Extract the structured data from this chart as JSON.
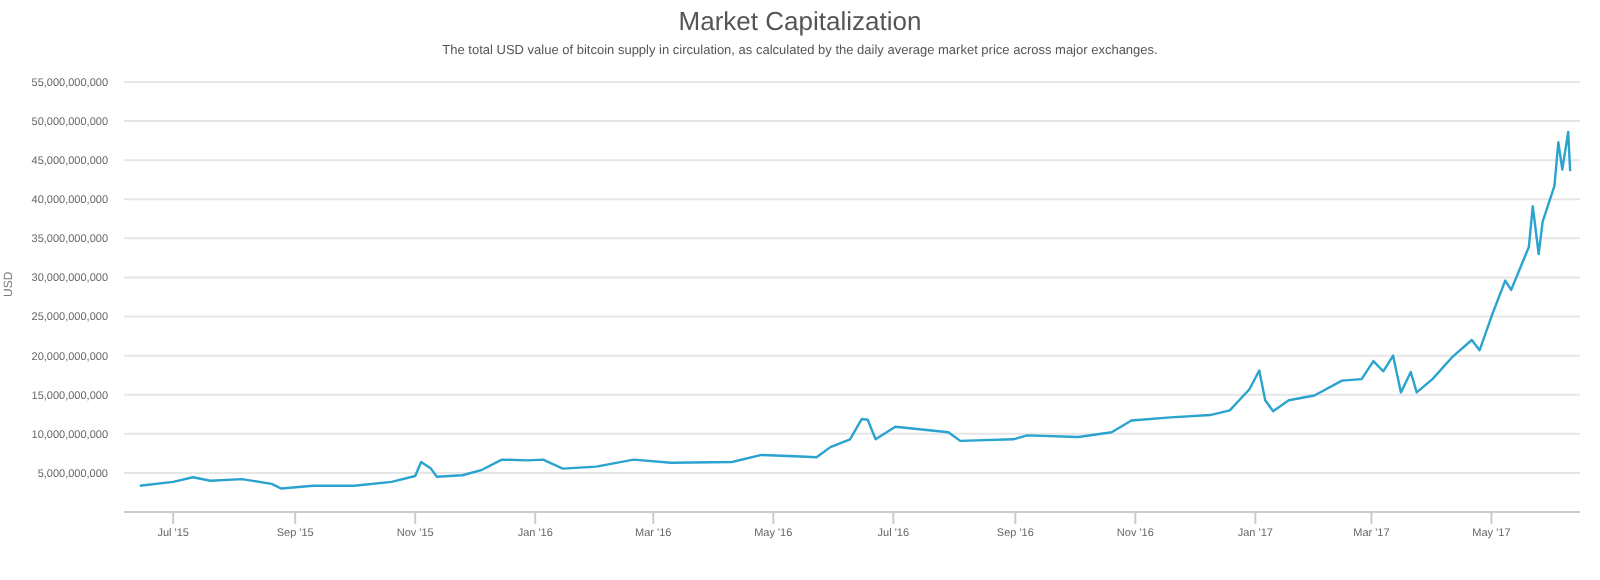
{
  "chart_data": {
    "type": "line",
    "title": "Market Capitalization",
    "subtitle": "The total USD value of bitcoin supply in circulation, as calculated by the daily average market price across major exchanges.",
    "ylabel": "USD",
    "x": [
      "2015-06-14",
      "2015-07-01",
      "2015-07-11",
      "2015-07-20",
      "2015-08-05",
      "2015-08-20",
      "2015-08-25",
      "2015-09-10",
      "2015-10-01",
      "2015-10-20",
      "2015-11-01",
      "2015-11-04",
      "2015-11-09",
      "2015-11-12",
      "2015-11-25",
      "2015-12-05",
      "2015-12-15",
      "2015-12-28",
      "2016-01-05",
      "2016-01-15",
      "2016-02-01",
      "2016-02-20",
      "2016-03-10",
      "2016-04-10",
      "2016-04-25",
      "2016-05-15",
      "2016-05-23",
      "2016-05-30",
      "2016-06-09",
      "2016-06-15",
      "2016-06-18",
      "2016-06-22",
      "2016-07-02",
      "2016-07-29",
      "2016-08-04",
      "2016-08-31",
      "2016-09-07",
      "2016-10-03",
      "2016-10-20",
      "2016-10-30",
      "2016-11-19",
      "2016-12-09",
      "2016-12-19",
      "2016-12-29",
      "2017-01-03",
      "2017-01-06",
      "2017-01-10",
      "2017-01-18",
      "2017-01-31",
      "2017-02-14",
      "2017-02-24",
      "2017-03-02",
      "2017-03-07",
      "2017-03-12",
      "2017-03-16",
      "2017-03-21",
      "2017-03-24",
      "2017-04-01",
      "2017-04-11",
      "2017-04-21",
      "2017-04-25",
      "2017-05-01",
      "2017-05-08",
      "2017-05-11",
      "2017-05-20",
      "2017-05-22",
      "2017-05-25",
      "2017-05-27",
      "2017-06-02",
      "2017-06-04",
      "2017-06-06",
      "2017-06-09",
      "2017-06-10"
    ],
    "series": [
      {
        "color": "#2ba3cf",
        "values": [
          3350000000,
          3850000000,
          4450000000,
          4000000000,
          4200000000,
          3600000000,
          3000000000,
          3350000000,
          3350000000,
          3850000000,
          4600000000,
          6400000000,
          5550000000,
          4500000000,
          4700000000,
          5400000000,
          6700000000,
          6600000000,
          6700000000,
          5550000000,
          5800000000,
          6700000000,
          6300000000,
          6400000000,
          7300000000,
          7100000000,
          7000000000,
          8300000000,
          9300000000,
          11900000000,
          11800000000,
          9300000000,
          10900000000,
          10200000000,
          9100000000,
          9300000000,
          9800000000,
          9600000000,
          10200000000,
          11700000000,
          12100000000,
          12400000000,
          13000000000,
          15700000000,
          18100000000,
          14300000000,
          12900000000,
          14300000000,
          14900000000,
          16800000000,
          17000000000,
          19300000000,
          18000000000,
          20000000000,
          15300000000,
          17900000000,
          15300000000,
          17000000000,
          19800000000,
          22000000000,
          20700000000,
          25000000000,
          29600000000,
          28400000000,
          33900000000,
          39100000000,
          33000000000,
          37100000000,
          41700000000,
          47300000000,
          43800000000,
          48600000000,
          43600000000
        ]
      }
    ],
    "xlim": [
      "2015-06-06",
      "2017-06-15"
    ],
    "xticks": [
      {
        "value": "2015-07-01",
        "label": "Jul '15"
      },
      {
        "value": "2015-09-01",
        "label": "Sep '15"
      },
      {
        "value": "2015-11-01",
        "label": "Nov '15"
      },
      {
        "value": "2016-01-01",
        "label": "Jan '16"
      },
      {
        "value": "2016-03-01",
        "label": "Mar '16"
      },
      {
        "value": "2016-05-01",
        "label": "May '16"
      },
      {
        "value": "2016-07-01",
        "label": "Jul '16"
      },
      {
        "value": "2016-09-01",
        "label": "Sep '16"
      },
      {
        "value": "2016-11-01",
        "label": "Nov '16"
      },
      {
        "value": "2017-01-01",
        "label": "Jan '17"
      },
      {
        "value": "2017-03-01",
        "label": "Mar '17"
      },
      {
        "value": "2017-05-01",
        "label": "May '17"
      }
    ],
    "ylim": [
      0,
      55000000000
    ],
    "yticks": [
      {
        "value": 0,
        "label": null
      },
      {
        "value": 5000000000,
        "label": "5,000,000,000"
      },
      {
        "value": 10000000000,
        "label": "10,000,000,000"
      },
      {
        "value": 15000000000,
        "label": "15,000,000,000"
      },
      {
        "value": 20000000000,
        "label": "20,000,000,000"
      },
      {
        "value": 25000000000,
        "label": "25,000,000,000"
      },
      {
        "value": 30000000000,
        "label": "30,000,000,000"
      },
      {
        "value": 35000000000,
        "label": "35,000,000,000"
      },
      {
        "value": 40000000000,
        "label": "40,000,000,000"
      },
      {
        "value": 45000000000,
        "label": "45,000,000,000"
      },
      {
        "value": 50000000000,
        "label": "50,000,000,000"
      },
      {
        "value": 55000000000,
        "label": "55,000,000,000"
      }
    ],
    "grid": "y",
    "legend": false,
    "marker": "none",
    "line_style": "solid"
  }
}
